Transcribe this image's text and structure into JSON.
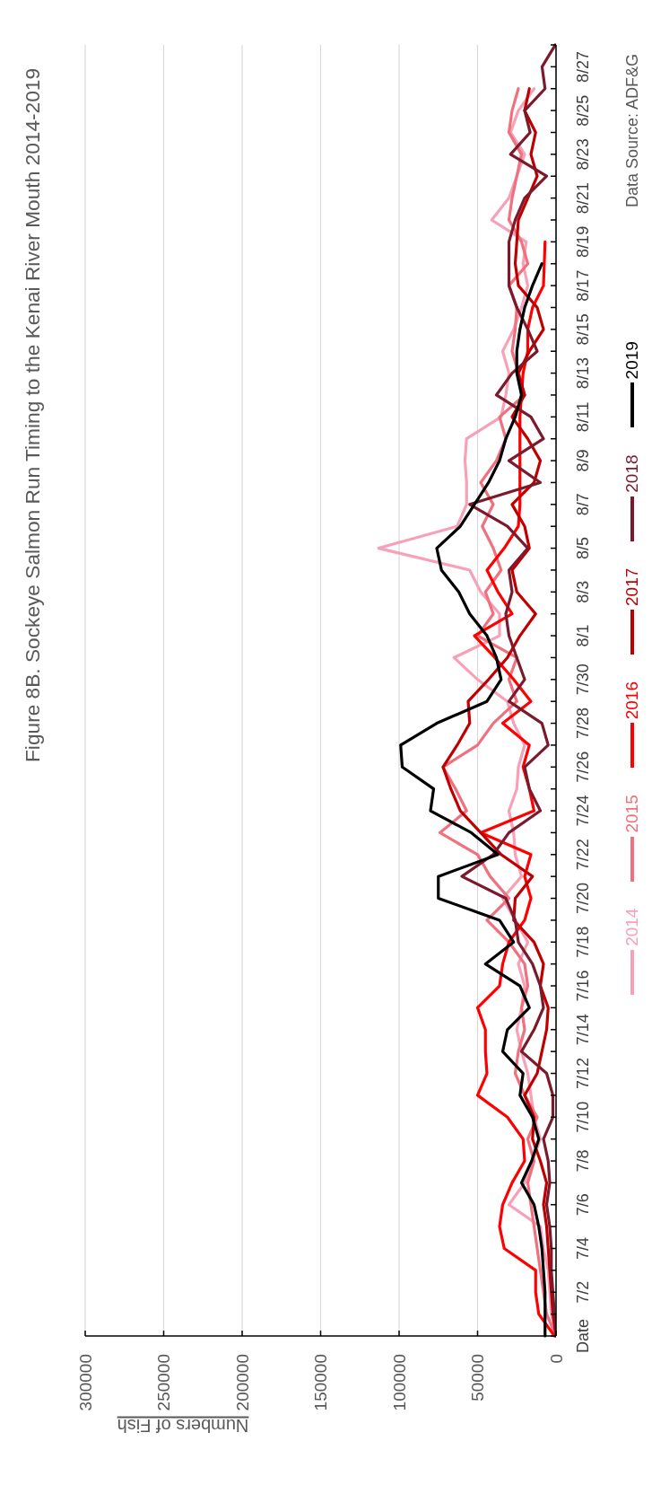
{
  "chart_data": {
    "type": "line",
    "orientation": "horizontal",
    "title": "Figure 8B. Sockeye Salmon Run Timing to the Kenai River Mouth 2014-2019",
    "xlabel": "Numbers of Fish",
    "annotations": [
      "Data Source: ADF&G"
    ],
    "categories": [
      null,
      "8/27",
      null,
      "8/25",
      null,
      "8/23",
      null,
      "8/21",
      null,
      "8/19",
      null,
      "8/17",
      null,
      "8/15",
      null,
      "8/13",
      null,
      "8/11",
      null,
      "8/9",
      null,
      "8/7",
      null,
      "8/5",
      null,
      "8/3",
      null,
      "8/1",
      null,
      "7/30",
      null,
      "7/28",
      null,
      "7/26",
      null,
      "7/24",
      null,
      "7/22",
      null,
      "7/20",
      null,
      "7/18",
      null,
      "7/16",
      null,
      "7/14",
      null,
      "7/12",
      null,
      "7/10",
      null,
      "7/8",
      null,
      "7/6",
      null,
      "7/4",
      null,
      "7/2",
      null,
      "Date"
    ],
    "series": [
      {
        "name": "2014",
        "color": "#f7a1b8",
        "values": [
          null,
          null,
          14000,
          24000,
          29000,
          20000,
          25000,
          30000,
          41000,
          19000,
          21000,
          18000,
          22000,
          27000,
          34000,
          30000,
          32000,
          35000,
          57000,
          58000,
          57000,
          57000,
          63000,
          113000,
          55000,
          48000,
          36000,
          36000,
          65000,
          50000,
          31000,
          27000,
          20000,
          24000,
          25000,
          30000,
          27000,
          26000,
          22000,
          34000,
          26000,
          18000,
          24000,
          20000,
          22000,
          25000,
          22000,
          18000,
          16000,
          14000,
          10000,
          15000,
          20000,
          30000,
          10000,
          8000,
          5000,
          4000,
          3000,
          0
        ]
      },
      {
        "name": "2015",
        "color": "#f0707e",
        "values": [
          null,
          null,
          24000,
          28000,
          30000,
          22000,
          25000,
          28000,
          30000,
          22000,
          18000,
          30000,
          25000,
          26000,
          28000,
          24000,
          20000,
          36000,
          32000,
          38000,
          48000,
          40000,
          47000,
          40000,
          35000,
          45000,
          40000,
          50000,
          25000,
          30000,
          25000,
          40000,
          50000,
          72000,
          64000,
          57000,
          74000,
          50000,
          42000,
          30000,
          44000,
          30000,
          20000,
          18000,
          22000,
          20000,
          24000,
          26000,
          20000,
          12000,
          18000,
          14000,
          18000,
          16000,
          14000,
          12000,
          10000,
          8000,
          6000,
          0
        ]
      },
      {
        "name": "2016",
        "color": "#ff0000",
        "values": [
          null,
          null,
          null,
          null,
          null,
          null,
          null,
          null,
          null,
          7000,
          7500,
          8000,
          15000,
          18000,
          18000,
          21000,
          22000,
          23000,
          23000,
          23000,
          23000,
          23000,
          24000,
          33000,
          44000,
          37000,
          28000,
          52000,
          39000,
          27000,
          16000,
          34000,
          17000,
          21000,
          17000,
          14000,
          48000,
          16000,
          20000,
          16000,
          20000,
          30000,
          34000,
          36000,
          50000,
          45000,
          45000,
          44000,
          50000,
          31000,
          21000,
          20000,
          28000,
          34000,
          36000,
          33000,
          13000,
          13000,
          11000,
          1000
        ]
      },
      {
        "name": "2017",
        "color": "#c00000",
        "values": [
          null,
          null,
          17000,
          20000,
          13000,
          16000,
          12000,
          18000,
          24000,
          25000,
          26000,
          24000,
          12000,
          8000,
          17000,
          24000,
          20000,
          28000,
          18000,
          10000,
          14000,
          28000,
          20000,
          17000,
          28000,
          25000,
          13000,
          23000,
          31000,
          43000,
          56000,
          55000,
          63000,
          72000,
          67000,
          61000,
          48000,
          35000,
          15000,
          26000,
          27000,
          14000,
          8000,
          10000,
          5000,
          6000,
          9000,
          12000,
          20000,
          14000,
          15000,
          10000,
          6000,
          8000,
          6000,
          5000,
          4000,
          3000,
          2000,
          0
        ]
      },
      {
        "name": "2018",
        "color": "#7b1a2c",
        "values": [
          500,
          8900,
          7000,
          20000,
          16500,
          29000,
          6000,
          20000,
          26000,
          30000,
          30000,
          30000,
          25000,
          18000,
          12000,
          28000,
          38000,
          16000,
          8000,
          30000,
          10000,
          55000,
          31000,
          18000,
          30000,
          28000,
          32000,
          30000,
          25000,
          20000,
          30000,
          9000,
          5000,
          20000,
          17000,
          10000,
          30000,
          40000,
          60000,
          32000,
          26000,
          24000,
          15000,
          10000,
          8000,
          14000,
          22000,
          6000,
          2000,
          2000,
          8000,
          5000,
          4000,
          6000,
          4000,
          3000,
          3000,
          2000,
          1000,
          0
        ]
      },
      {
        "name": "2019",
        "color": "#000000",
        "values": [
          null,
          null,
          null,
          null,
          null,
          null,
          null,
          null,
          null,
          null,
          9000,
          15000,
          20000,
          23000,
          25000,
          25000,
          22000,
          26000,
          32000,
          36000,
          43000,
          52000,
          61000,
          76000,
          73000,
          62000,
          55000,
          44000,
          38000,
          35000,
          44000,
          76000,
          99000,
          98000,
          78000,
          80000,
          54000,
          37000,
          75000,
          75000,
          36000,
          27000,
          45000,
          23000,
          17000,
          31000,
          34000,
          21000,
          23000,
          15000,
          11000,
          15500,
          22000,
          14000,
          11000,
          9000,
          8000,
          7000,
          7000,
          7000
        ]
      }
    ],
    "xlim": [
      300000,
      0
    ],
    "xticks": [
      0,
      50000,
      100000,
      150000,
      200000,
      250000,
      300000
    ],
    "grid": "x",
    "legend": "right"
  }
}
